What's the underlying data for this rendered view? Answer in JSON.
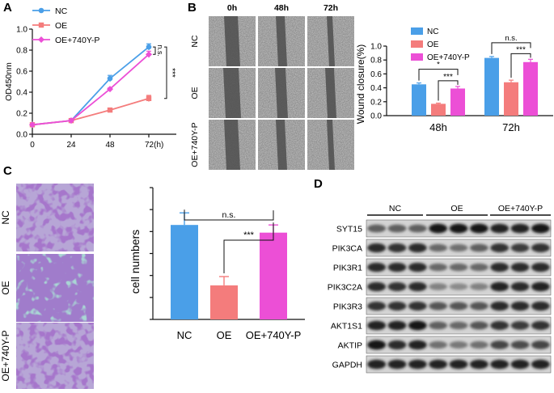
{
  "colors": {
    "nc": "#4a9fe8",
    "oe": "#f47c7c",
    "mut": "#ec4fd6",
    "axis": "#111111"
  },
  "chart_data": [
    {
      "panel": "A",
      "type": "line",
      "xlabel": "(h)",
      "ylabel": "OD450nm",
      "x": [
        0,
        24,
        48,
        72
      ],
      "x_ticks": [
        "0",
        "24",
        "48",
        "72(h)"
      ],
      "ylim": [
        0.0,
        1.0
      ],
      "y_ticks": [
        "0.0",
        "0.2",
        "0.4",
        "0.6",
        "0.8",
        "1.0"
      ],
      "series": [
        {
          "name": "NC",
          "values": [
            0.09,
            0.13,
            0.53,
            0.83
          ],
          "errors": [
            0.01,
            0.01,
            0.03,
            0.03
          ]
        },
        {
          "name": "OE",
          "values": [
            0.09,
            0.13,
            0.23,
            0.34
          ],
          "errors": [
            0.01,
            0.01,
            0.01,
            0.03
          ]
        },
        {
          "name": "OE+740Y-P",
          "values": [
            0.09,
            0.13,
            0.43,
            0.76
          ],
          "errors": [
            0.01,
            0.01,
            0.01,
            0.03
          ]
        }
      ],
      "annotations": [
        "n.s.",
        "***"
      ]
    },
    {
      "panel": "B",
      "type": "bar",
      "title": "",
      "xlabel": "",
      "ylabel": "Wound closure(%)",
      "categories": [
        "48h",
        "72h"
      ],
      "ylim": [
        0.0,
        1.0
      ],
      "y_ticks": [
        "0.0",
        "0.2",
        "0.4",
        "0.6",
        "0.8",
        "1.0"
      ],
      "series": [
        {
          "name": "NC",
          "values": [
            0.45,
            0.83
          ],
          "errors": [
            0.02,
            0.02
          ]
        },
        {
          "name": "OE",
          "values": [
            0.17,
            0.48
          ],
          "errors": [
            0.01,
            0.03
          ]
        },
        {
          "name": "OE+740Y-P",
          "values": [
            0.39,
            0.77
          ],
          "errors": [
            0.03,
            0.04
          ]
        }
      ],
      "annotations": {
        "48h": [
          "*",
          "***"
        ],
        "72h": [
          "n.s.",
          "***"
        ]
      }
    },
    {
      "panel": "C",
      "type": "bar",
      "ylabel": "cell numbers",
      "categories": [
        "NC",
        "OE",
        "OE+740Y-P"
      ],
      "values": [
        430,
        155,
        395
      ],
      "errors": [
        55,
        40,
        35
      ],
      "ylim": [
        0,
        600
      ],
      "annotations": [
        "n.s.",
        "***"
      ]
    }
  ],
  "panel_b_images": {
    "cols": [
      "0h",
      "48h",
      "72h"
    ],
    "rows": [
      "NC",
      "OE",
      "OE+740Y-P"
    ]
  },
  "panel_c_images": {
    "rows": [
      "NC",
      "OE",
      "OE+740Y-P"
    ]
  },
  "panel_d_blot": {
    "groups": [
      "NC",
      "OE",
      "OE+740Y-P"
    ],
    "proteins": [
      "SYT15",
      "PIK3CA",
      "PIK3R1",
      "PIK3C2A",
      "PIK3R3",
      "AKT1S1",
      "AKTIP",
      "GAPDH"
    ],
    "band_intensity": [
      [
        0.55,
        0.55,
        0.55,
        0.95,
        0.95,
        0.95,
        0.9,
        0.9,
        0.95
      ],
      [
        0.85,
        0.8,
        0.85,
        0.5,
        0.45,
        0.55,
        0.8,
        0.75,
        0.8
      ],
      [
        0.85,
        0.85,
        0.85,
        0.5,
        0.5,
        0.5,
        0.85,
        0.85,
        0.85
      ],
      [
        0.85,
        0.8,
        0.85,
        0.35,
        0.3,
        0.35,
        0.9,
        0.85,
        0.9
      ],
      [
        0.8,
        0.8,
        0.8,
        0.6,
        0.6,
        0.6,
        0.85,
        0.85,
        0.85
      ],
      [
        0.9,
        0.9,
        0.95,
        0.55,
        0.5,
        0.6,
        0.8,
        0.75,
        0.8
      ],
      [
        0.95,
        0.85,
        0.9,
        0.45,
        0.4,
        0.45,
        0.7,
        0.65,
        0.7
      ],
      [
        0.9,
        0.9,
        0.9,
        0.9,
        0.9,
        0.9,
        0.9,
        0.9,
        0.9
      ]
    ]
  },
  "panel_labels": [
    "A",
    "B",
    "C",
    "D"
  ]
}
